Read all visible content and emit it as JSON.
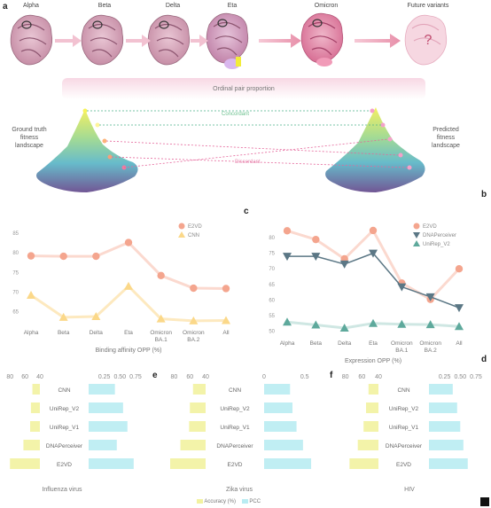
{
  "panels": {
    "a": "a",
    "b": "b",
    "c": "c",
    "d": "d",
    "e": "e",
    "f": "f"
  },
  "variants": [
    "Alpha",
    "Beta",
    "Delta",
    "Eta",
    "Omicron",
    "Future variants"
  ],
  "question_mark": "?",
  "opp_bar_label": "Ordinal pair proportion",
  "landscape_left": "Ground truth\nfitness\nlandscape",
  "landscape_right": "Predicted\nfitness\nlandscape",
  "link_concordant": "Concordant",
  "link_discordant": "Discordant",
  "colors": {
    "e2vd": "#f4a58e",
    "cnn": "#fbd889",
    "dnaperceiver": "#5b7785",
    "unirep_v2": "#5ea99c",
    "accuracy": "#f2f2a0",
    "pcc": "#b9ecf2"
  },
  "chart_data": [
    {
      "type": "line",
      "xlabel": "Binding affinity OPP (%)",
      "categories": [
        "Alpha",
        "Beta",
        "Delta",
        "Eta",
        "Omicron\nBA.1",
        "Omicron\nBA.2",
        "All"
      ],
      "yticks": [
        "85",
        "80",
        "75",
        "70",
        "65"
      ],
      "ylim": [
        62,
        87
      ],
      "series": [
        {
          "name": "E2VD",
          "values": [
            79.2,
            79.1,
            79.1,
            82.6,
            74.2,
            71.0,
            70.9
          ]
        },
        {
          "name": "CNN",
          "values": [
            69.2,
            63.6,
            63.8,
            71.5,
            63.2,
            62.7,
            62.8
          ]
        }
      ]
    },
    {
      "type": "line",
      "xlabel": "Expression OPP (%)",
      "categories": [
        "Alpha",
        "Beta",
        "Delta",
        "Eta",
        "Omicron\nBA.1",
        "Omicron\nBA.2",
        "All"
      ],
      "yticks": [
        "80",
        "75",
        "70",
        "65",
        "60",
        "55",
        "50"
      ],
      "ylim": [
        49,
        84
      ],
      "series": [
        {
          "name": "E2VD",
          "values": [
            82.2,
            79.4,
            73.2,
            82.3,
            65.4,
            60.2,
            70.0
          ]
        },
        {
          "name": "DNAPerceiver",
          "values": [
            74.0,
            74.0,
            71.5,
            75.0,
            64.2,
            61.0,
            57.5
          ]
        },
        {
          "name": "UniRep_V2",
          "values": [
            52.9,
            52.0,
            51.0,
            52.5,
            52.2,
            52.1,
            51.5
          ]
        }
      ]
    },
    {
      "type": "bar",
      "title": "Influenza virus",
      "categories": [
        "CNN",
        "UniRep_V2",
        "UniRep_V1",
        "DNAPerceiver",
        "E2VD"
      ],
      "left_ticks": [
        "80",
        "60",
        "40"
      ],
      "right_ticks": [
        "0.25",
        "0.50",
        "0.75"
      ],
      "accuracy": [
        50,
        52,
        53,
        62,
        80
      ],
      "pcc": [
        0.42,
        0.55,
        0.62,
        0.45,
        0.72
      ]
    },
    {
      "type": "bar",
      "title": "Zika virus",
      "categories": [
        "CNN",
        "UniRep_V2",
        "UniRep_V1",
        "DNAPerceiver",
        "E2VD"
      ],
      "left_ticks": [
        "80",
        "60",
        "40"
      ],
      "right_ticks": [
        "0",
        "0.5"
      ],
      "accuracy": [
        56,
        60,
        61,
        72,
        85
      ],
      "pcc": [
        0.32,
        0.35,
        0.4,
        0.48,
        0.58
      ]
    },
    {
      "type": "bar",
      "title": "HIV",
      "categories": [
        "CNN",
        "UniRep_V2",
        "UniRep_V1",
        "DNAPerceiver",
        "E2VD"
      ],
      "left_ticks": [
        "80",
        "60",
        "40"
      ],
      "right_ticks": [
        "0.25",
        "0.50",
        "0.75"
      ],
      "accuracy": [
        52,
        55,
        58,
        65,
        75
      ],
      "pcc": [
        0.38,
        0.45,
        0.5,
        0.55,
        0.62
      ]
    }
  ],
  "legend_bottom": {
    "accuracy": "Accuracy (%)",
    "pcc": "PCC"
  }
}
